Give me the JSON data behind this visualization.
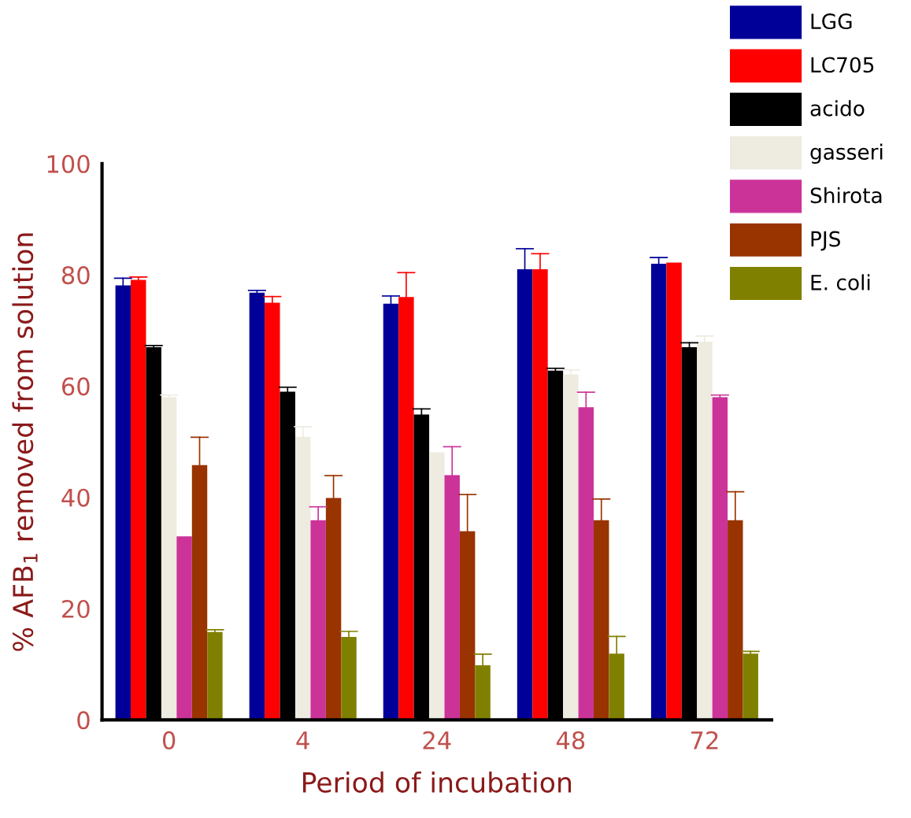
{
  "chart_data": {
    "type": "bar",
    "xlabel": "Period of incubation",
    "ylabel": "% AFB$_{1}$ removed from solution",
    "categories": [
      "0",
      "4",
      "24",
      "48",
      "72"
    ],
    "series": [
      {
        "name": "LGG",
        "color": "#000099",
        "values": [
          78.1,
          76.8,
          74.8,
          81.0,
          82.0
        ],
        "errors": [
          [
            78.1,
            79.4
          ],
          [
            76.8,
            77.2
          ],
          [
            74.8,
            76.2
          ],
          [
            81.0,
            84.7
          ],
          [
            82.0,
            83.1
          ]
        ]
      },
      {
        "name": "LC705",
        "color": "#ff0000",
        "values": [
          79.1,
          75.0,
          76.0,
          81.0,
          82.2
        ],
        "errors": [
          [
            79.1,
            79.6
          ],
          [
            75.0,
            76.1
          ],
          [
            76.0,
            80.4
          ],
          [
            81.0,
            83.8
          ],
          null
        ]
      },
      {
        "name": "acido",
        "color": "#000000",
        "values": [
          67.0,
          59.0,
          54.9,
          62.8,
          67.0
        ],
        "errors": [
          [
            67.0,
            67.3
          ],
          [
            59.0,
            59.8
          ],
          [
            54.9,
            55.9
          ],
          [
            62.8,
            63.2
          ],
          [
            67.0,
            67.8
          ]
        ]
      },
      {
        "name": "gasseri",
        "color": "#eeebe0",
        "values": [
          58.0,
          50.9,
          48.1,
          62.1,
          68.0
        ],
        "errors": [
          [
            58.0,
            58.4
          ],
          [
            50.9,
            52.7
          ],
          null,
          [
            62.1,
            62.9
          ],
          [
            68.0,
            69.0
          ]
        ]
      },
      {
        "name": "Shirota",
        "color": "#cc3399",
        "values": [
          33.0,
          35.9,
          44.0,
          56.2,
          58.0
        ],
        "errors": [
          null,
          [
            35.9,
            38.3
          ],
          [
            44.0,
            49.1
          ],
          [
            56.2,
            58.9
          ],
          [
            58.0,
            58.4
          ]
        ]
      },
      {
        "name": "PJS",
        "color": "#993300",
        "values": [
          45.8,
          39.9,
          33.9,
          35.9,
          35.9
        ],
        "errors": [
          [
            45.8,
            50.8
          ],
          [
            39.9,
            43.9
          ],
          [
            33.9,
            40.5
          ],
          [
            35.9,
            39.7
          ],
          [
            35.9,
            41.0
          ]
        ]
      },
      {
        "name": "E. coli",
        "color": "#808000",
        "values": [
          15.8,
          14.9,
          9.8,
          11.9,
          11.9
        ],
        "errors": [
          [
            15.8,
            16.2
          ],
          [
            14.9,
            15.9
          ],
          [
            9.8,
            11.8
          ],
          [
            11.9,
            15.0
          ],
          [
            11.9,
            12.3
          ]
        ]
      }
    ],
    "ylim": [
      0,
      100
    ],
    "yticks": [
      0,
      20,
      40,
      60,
      80,
      100
    ],
    "grid": false,
    "legend": "top right"
  }
}
